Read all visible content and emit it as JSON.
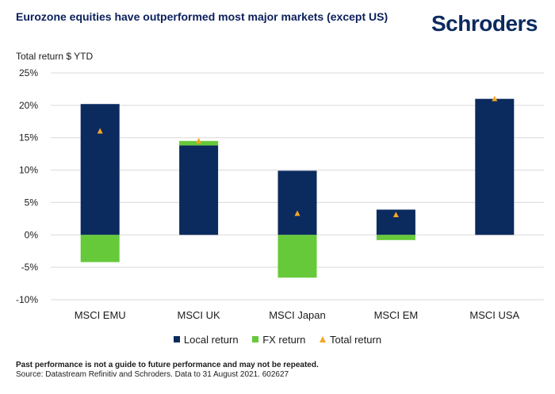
{
  "header": {
    "title": "Eurozone equities have outperformed most major markets (except US)",
    "logo_text": "Schroders"
  },
  "footer": {
    "disclaimer": "Past performance is not a guide to future performance and may not be repeated.",
    "source": "Source: Datastream Refinitiv and Schroders. Data to 31 August 2021. 602627"
  },
  "chart_data": {
    "type": "bar",
    "title": "Eurozone equities have outperformed most major markets (except US)",
    "ylabel": "Total return $ YTD",
    "xlabel": "",
    "stacked": true,
    "categories": [
      "MSCI EMU",
      "MSCI UK",
      "MSCI Japan",
      "MSCI EM",
      "MSCI USA"
    ],
    "ylim": [
      -10,
      25
    ],
    "yticks": [
      25,
      20,
      15,
      10,
      5,
      0,
      -5,
      -10
    ],
    "ytick_labels": [
      "25%",
      "20%",
      "15%",
      "10%",
      "5%",
      "0%",
      "-5%",
      "-10%"
    ],
    "grid": true,
    "legend_position": "bottom",
    "series": [
      {
        "name": "Local return",
        "kind": "bar",
        "color": "#0b2a5e",
        "values": [
          20.2,
          13.8,
          9.9,
          3.9,
          21.0
        ]
      },
      {
        "name": "FX return",
        "kind": "bar",
        "color": "#66c93a",
        "values": [
          -4.2,
          0.7,
          -6.6,
          -0.8,
          0.0
        ]
      },
      {
        "name": "Total return",
        "kind": "marker",
        "color": "#f5a623",
        "values": [
          16.0,
          14.5,
          3.3,
          3.1,
          21.0
        ]
      }
    ]
  }
}
